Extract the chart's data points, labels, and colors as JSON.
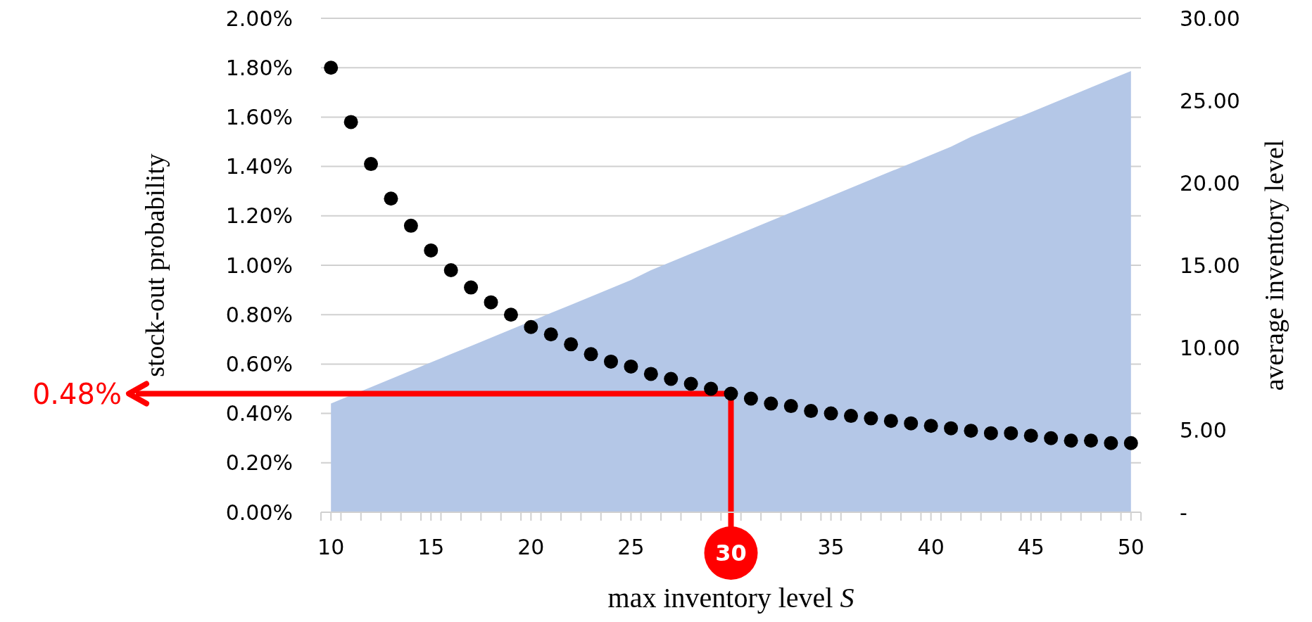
{
  "chart_data": {
    "type": "scatter",
    "xlabel": "max inventory level S",
    "ylabel": "stock-out probability",
    "y2label": "average inventory level",
    "x": [
      10,
      11,
      12,
      13,
      14,
      15,
      16,
      17,
      18,
      19,
      20,
      21,
      22,
      23,
      24,
      25,
      26,
      27,
      28,
      29,
      30,
      31,
      32,
      33,
      34,
      35,
      36,
      37,
      38,
      39,
      40,
      41,
      42,
      43,
      44,
      45,
      46,
      47,
      48,
      49,
      50
    ],
    "series": [
      {
        "type": "area",
        "axis": "y2",
        "color": "#b4c7e7",
        "values": [
          6.6,
          7.1,
          7.6,
          8.1,
          8.6,
          9.1,
          9.6,
          10.1,
          10.6,
          11.1,
          11.6,
          12.1,
          12.6,
          13.1,
          13.6,
          14.1,
          14.7,
          15.2,
          15.7,
          16.2,
          16.7,
          17.2,
          17.7,
          18.2,
          18.7,
          19.2,
          19.7,
          20.2,
          20.7,
          21.2,
          21.7,
          22.2,
          22.8,
          23.3,
          23.8,
          24.3,
          24.8,
          25.3,
          25.8,
          26.3,
          26.8
        ]
      },
      {
        "color": "#000000",
        "marker": "circle",
        "values": [
          1.8,
          1.58,
          1.41,
          1.27,
          1.16,
          1.06,
          0.98,
          0.91,
          0.85,
          0.8,
          0.75,
          0.72,
          0.68,
          0.64,
          0.61,
          0.59,
          0.56,
          0.54,
          0.52,
          0.5,
          0.48,
          0.46,
          0.44,
          0.43,
          0.41,
          0.4,
          0.39,
          0.38,
          0.37,
          0.36,
          0.35,
          0.34,
          0.33,
          0.32,
          0.32,
          0.31,
          0.3,
          0.29,
          0.29,
          0.28,
          0.28
        ]
      }
    ],
    "grid": "y",
    "xlim": [
      9.5,
      50.5
    ],
    "xticks": [
      {
        "value": 9.5,
        "label": null
      },
      {
        "value": 10,
        "label": "10"
      },
      {
        "value": 10.5,
        "label": null
      },
      {
        "value": 11.5,
        "label": null
      },
      {
        "value": 12.5,
        "label": null
      },
      {
        "value": 13.5,
        "label": null
      },
      {
        "value": 14.5,
        "label": null
      },
      {
        "value": 15,
        "label": "15"
      },
      {
        "value": 15.5,
        "label": null
      },
      {
        "value": 16.5,
        "label": null
      },
      {
        "value": 17.5,
        "label": null
      },
      {
        "value": 18.5,
        "label": null
      },
      {
        "value": 19.5,
        "label": null
      },
      {
        "value": 20,
        "label": "20"
      },
      {
        "value": 20.5,
        "label": null
      },
      {
        "value": 21.5,
        "label": null
      },
      {
        "value": 22.5,
        "label": null
      },
      {
        "value": 23.5,
        "label": null
      },
      {
        "value": 24.5,
        "label": null
      },
      {
        "value": 25,
        "label": "25"
      },
      {
        "value": 25.5,
        "label": null
      },
      {
        "value": 26.5,
        "label": null
      },
      {
        "value": 27.5,
        "label": null
      },
      {
        "value": 28.5,
        "label": null
      },
      {
        "value": 29.5,
        "label": null
      },
      {
        "value": 30.5,
        "label": null
      },
      {
        "value": 31.5,
        "label": null
      },
      {
        "value": 32.5,
        "label": null
      },
      {
        "value": 33.5,
        "label": null
      },
      {
        "value": 34.5,
        "label": null
      },
      {
        "value": 35,
        "label": "35"
      },
      {
        "value": 35.5,
        "label": null
      },
      {
        "value": 36.5,
        "label": null
      },
      {
        "value": 37.5,
        "label": null
      },
      {
        "value": 38.5,
        "label": null
      },
      {
        "value": 39.5,
        "label": null
      },
      {
        "value": 40,
        "label": "40"
      },
      {
        "value": 40.5,
        "label": null
      },
      {
        "value": 41.5,
        "label": null
      },
      {
        "value": 42.5,
        "label": null
      },
      {
        "value": 43.5,
        "label": null
      },
      {
        "value": 44.5,
        "label": null
      },
      {
        "value": 45,
        "label": "45"
      },
      {
        "value": 45.5,
        "label": null
      },
      {
        "value": 46.5,
        "label": null
      },
      {
        "value": 47.5,
        "label": null
      },
      {
        "value": 48.5,
        "label": null
      },
      {
        "value": 49.5,
        "label": null
      },
      {
        "value": 50,
        "label": "50"
      },
      {
        "value": 50.5,
        "label": null
      }
    ],
    "ylim": [
      0,
      2
    ],
    "yticks": [
      {
        "value": 0,
        "label": "0.00%"
      },
      {
        "value": 0.2,
        "label": "0.20%"
      },
      {
        "value": 0.4,
        "label": "0.40%"
      },
      {
        "value": 0.6,
        "label": "0.60%"
      },
      {
        "value": 0.8,
        "label": "0.80%"
      },
      {
        "value": 1,
        "label": "1.00%"
      },
      {
        "value": 1.2,
        "label": "1.20%"
      },
      {
        "value": 1.4,
        "label": "1.40%"
      },
      {
        "value": 1.6,
        "label": "1.60%"
      },
      {
        "value": 1.8,
        "label": "1.80%"
      },
      {
        "value": 2,
        "label": "2.00%"
      }
    ],
    "y2lim": [
      0,
      30
    ],
    "y2ticks": [
      {
        "value": 0,
        "label": "-"
      },
      {
        "value": 5,
        "label": "5.00"
      },
      {
        "value": 10,
        "label": "10.00"
      },
      {
        "value": 15,
        "label": "15.00"
      },
      {
        "value": 20,
        "label": "20.00"
      },
      {
        "value": 25,
        "label": "25.00"
      },
      {
        "value": 30,
        "label": "30.00"
      }
    ],
    "annotations": [
      "0.48%",
      {
        "text": "30",
        "x": 30,
        "y": 0
      }
    ]
  }
}
